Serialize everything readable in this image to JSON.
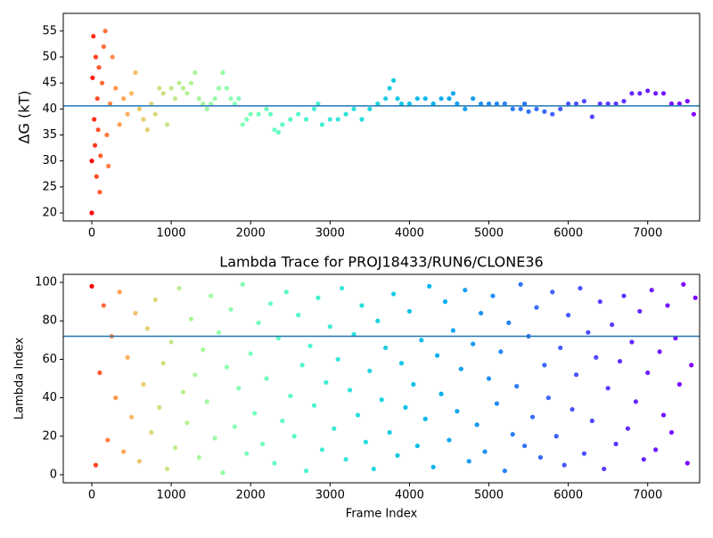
{
  "chart_data": [
    {
      "type": "scatter",
      "ylabel": "ΔG (kT)",
      "colormap": "rainbow",
      "x": [
        0,
        0,
        10,
        20,
        30,
        40,
        50,
        60,
        70,
        80,
        90,
        100,
        110,
        130,
        150,
        170,
        190,
        210,
        230,
        260,
        300,
        350,
        400,
        450,
        500,
        550,
        600,
        650,
        700,
        750,
        800,
        850,
        900,
        950,
        1000,
        1050,
        1100,
        1150,
        1200,
        1250,
        1300,
        1350,
        1400,
        1450,
        1500,
        1550,
        1600,
        1650,
        1700,
        1750,
        1800,
        1850,
        1900,
        1950,
        2000,
        2100,
        2200,
        2250,
        2300,
        2350,
        2400,
        2500,
        2600,
        2700,
        2800,
        2850,
        2900,
        3000,
        3100,
        3200,
        3300,
        3400,
        3500,
        3600,
        3700,
        3750,
        3800,
        3850,
        3900,
        4000,
        4100,
        4200,
        4300,
        4400,
        4500,
        4550,
        4600,
        4700,
        4800,
        4900,
        5000,
        5100,
        5200,
        5300,
        5400,
        5450,
        5500,
        5600,
        5700,
        5800,
        5900,
        6000,
        6100,
        6200,
        6300,
        6400,
        6500,
        6600,
        6700,
        6800,
        6900,
        7000,
        7100,
        7200,
        7300,
        7400,
        7500,
        7580
      ],
      "values": [
        20,
        30,
        46,
        54,
        38,
        33,
        50,
        27,
        42,
        36,
        48,
        24,
        31,
        45,
        52,
        55,
        35,
        29,
        41,
        50,
        44,
        37,
        42,
        39,
        43,
        47,
        40,
        38,
        36,
        41,
        39,
        44,
        43,
        37,
        44,
        42,
        45,
        44,
        43,
        45,
        47,
        42,
        41,
        40,
        41,
        42,
        44,
        47,
        44,
        42,
        41,
        42,
        37,
        38,
        39,
        39,
        40,
        39,
        36,
        35.5,
        37,
        38,
        39,
        38,
        40,
        41,
        37,
        38,
        38,
        39,
        40,
        38,
        40,
        41,
        42,
        44,
        45.5,
        42,
        41,
        41,
        42,
        42,
        41,
        42,
        42,
        43,
        41,
        40,
        42,
        41,
        41,
        41,
        41,
        40,
        40,
        41,
        39.5,
        40,
        39.5,
        39,
        40,
        41,
        41,
        41.5,
        38.5,
        41,
        41,
        41,
        41.5,
        43,
        43,
        43.5,
        43,
        43,
        41,
        41,
        41.5,
        39
      ],
      "hline": 40.6,
      "hline_color": "#1f77b4",
      "xlim": [
        -359,
        7654
      ],
      "xticks": [
        0,
        1000,
        2000,
        3000,
        4000,
        5000,
        6000,
        7000
      ],
      "ylim": [
        18.46,
        58.4
      ],
      "yticks": [
        20,
        25,
        30,
        35,
        40,
        45,
        50,
        55
      ]
    },
    {
      "type": "scatter",
      "title": "Lambda Trace for PROJ18433/RUN6/CLONE36",
      "xlabel": "Frame Index",
      "ylabel": "Lambda Index",
      "colormap": "rainbow",
      "x": [
        0,
        50,
        100,
        150,
        200,
        250,
        300,
        350,
        400,
        450,
        500,
        550,
        600,
        650,
        700,
        750,
        800,
        850,
        900,
        950,
        1000,
        1050,
        1100,
        1150,
        1200,
        1250,
        1300,
        1350,
        1400,
        1450,
        1500,
        1550,
        1600,
        1650,
        1700,
        1750,
        1800,
        1850,
        1900,
        1950,
        2000,
        2050,
        2100,
        2150,
        2200,
        2250,
        2300,
        2350,
        2400,
        2450,
        2500,
        2550,
        2600,
        2650,
        2700,
        2750,
        2800,
        2850,
        2900,
        2950,
        3000,
        3050,
        3100,
        3150,
        3200,
        3250,
        3300,
        3350,
        3400,
        3450,
        3500,
        3550,
        3600,
        3650,
        3700,
        3750,
        3800,
        3850,
        3900,
        3950,
        4000,
        4050,
        4100,
        4150,
        4200,
        4250,
        4300,
        4350,
        4400,
        4450,
        4500,
        4550,
        4600,
        4650,
        4700,
        4750,
        4800,
        4850,
        4900,
        4950,
        5000,
        5050,
        5100,
        5150,
        5200,
        5250,
        5300,
        5350,
        5400,
        5450,
        5500,
        5550,
        5600,
        5650,
        5700,
        5750,
        5800,
        5850,
        5900,
        5950,
        6000,
        6050,
        6100,
        6150,
        6200,
        6250,
        6300,
        6350,
        6400,
        6450,
        6500,
        6550,
        6600,
        6650,
        6700,
        6750,
        6800,
        6850,
        6900,
        6950,
        7000,
        7050,
        7100,
        7150,
        7200,
        7250,
        7300,
        7350,
        7400,
        7450,
        7500,
        7550,
        7600
      ],
      "values": [
        98,
        5,
        53,
        88,
        18,
        72,
        40,
        95,
        12,
        61,
        30,
        84,
        7,
        47,
        76,
        22,
        91,
        35,
        58,
        3,
        69,
        14,
        97,
        43,
        27,
        81,
        52,
        9,
        65,
        38,
        93,
        19,
        74,
        1,
        56,
        86,
        25,
        45,
        99,
        11,
        63,
        32,
        79,
        16,
        50,
        89,
        6,
        71,
        28,
        95,
        41,
        20,
        83,
        57,
        2,
        67,
        36,
        92,
        13,
        48,
        77,
        24,
        60,
        97,
        8,
        44,
        73,
        31,
        88,
        17,
        54,
        3,
        80,
        39,
        66,
        22,
        94,
        10,
        58,
        35,
        85,
        47,
        15,
        70,
        29,
        98,
        4,
        62,
        42,
        90,
        18,
        75,
        33,
        55,
        96,
        7,
        68,
        26,
        84,
        12,
        50,
        93,
        37,
        64,
        2,
        79,
        21,
        46,
        99,
        15,
        72,
        30,
        87,
        9,
        57,
        40,
        95,
        20,
        66,
        5,
        83,
        34,
        52,
        97,
        11,
        74,
        28,
        61,
        90,
        3,
        45,
        78,
        16,
        59,
        93,
        24,
        69,
        38,
        85,
        8,
        53,
        96,
        13,
        64,
        31,
        88,
        22,
        71,
        47,
        99,
        6,
        57,
        92
      ],
      "hline": 72,
      "hline_color": "#1f77b4",
      "xlim": [
        -359,
        7654
      ],
      "xticks": [
        0,
        1000,
        2000,
        3000,
        4000,
        5000,
        6000,
        7000
      ],
      "ylim": [
        -4.2,
        104.2
      ],
      "yticks": [
        0,
        20,
        40,
        60,
        80,
        100
      ]
    }
  ]
}
